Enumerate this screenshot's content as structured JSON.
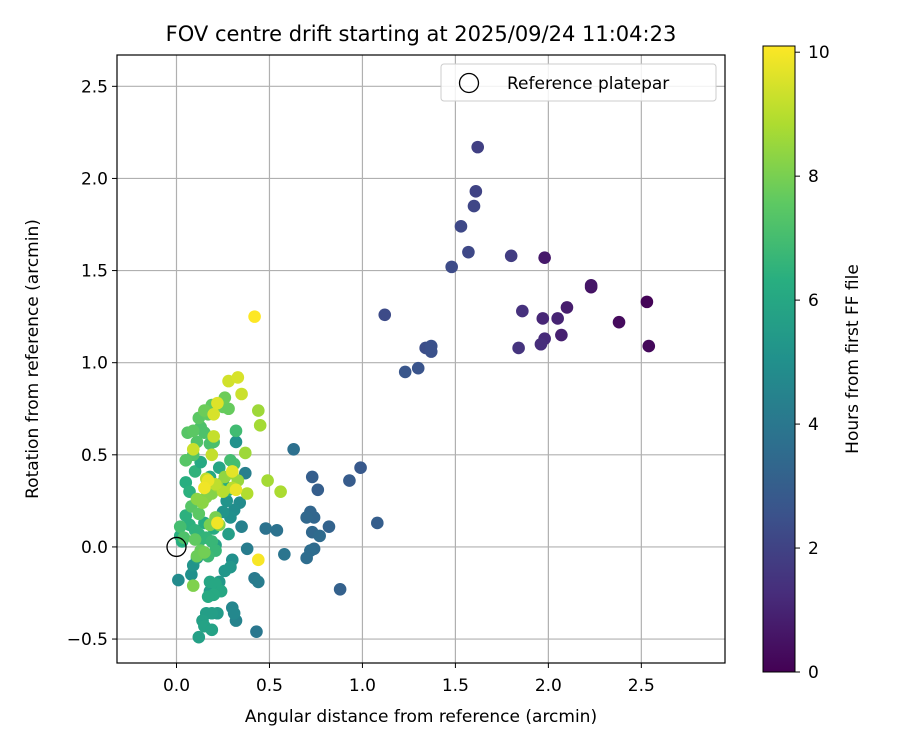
{
  "chart_data": {
    "type": "scatter",
    "title": "FOV centre drift starting at 2025/09/24 11:04:23",
    "xlabel": "Angular distance from reference (arcmin)",
    "ylabel": "Rotation from reference (arcmin)",
    "xlim": [
      -0.32,
      2.95
    ],
    "ylim": [
      -0.63,
      2.67
    ],
    "xticks": [
      0.0,
      0.5,
      1.0,
      1.5,
      2.0,
      2.5
    ],
    "xtick_labels": [
      "0.0",
      "0.5",
      "1.0",
      "1.5",
      "2.0",
      "2.5"
    ],
    "yticks": [
      -0.5,
      0.0,
      0.5,
      1.0,
      1.5,
      2.0,
      2.5
    ],
    "ytick_labels": [
      "−0.5",
      "0.0",
      "0.5",
      "1.0",
      "1.5",
      "2.0",
      "2.5"
    ],
    "grid": true,
    "legend": {
      "location": "top-right",
      "entries": [
        "Reference platepar"
      ]
    },
    "reference_point": {
      "x": 0.0,
      "y": 0.0,
      "label": "Reference platepar"
    },
    "colorbar": {
      "label": "Hours from first FF file",
      "colormap": "viridis",
      "range": [
        0,
        10.1
      ],
      "ticks": [
        0,
        2,
        4,
        6,
        8,
        10
      ],
      "tick_labels": [
        "0",
        "2",
        "4",
        "6",
        "8",
        "10"
      ]
    },
    "points": [
      {
        "x": 2.53,
        "y": 1.33,
        "h": 0.1
      },
      {
        "x": 2.54,
        "y": 1.09,
        "h": 0.2
      },
      {
        "x": 2.38,
        "y": 1.22,
        "h": 0.3
      },
      {
        "x": 2.23,
        "y": 1.41,
        "h": 0.5
      },
      {
        "x": 2.23,
        "y": 1.42,
        "h": 0.6
      },
      {
        "x": 1.98,
        "y": 1.57,
        "h": 0.7
      },
      {
        "x": 2.1,
        "y": 1.3,
        "h": 0.8
      },
      {
        "x": 2.07,
        "y": 1.15,
        "h": 0.9
      },
      {
        "x": 2.05,
        "y": 1.24,
        "h": 1.0
      },
      {
        "x": 1.97,
        "y": 1.24,
        "h": 1.1
      },
      {
        "x": 1.98,
        "y": 1.13,
        "h": 1.2
      },
      {
        "x": 1.96,
        "y": 1.1,
        "h": 1.3
      },
      {
        "x": 1.86,
        "y": 1.28,
        "h": 1.4
      },
      {
        "x": 1.84,
        "y": 1.08,
        "h": 1.5
      },
      {
        "x": 1.8,
        "y": 1.58,
        "h": 1.8
      },
      {
        "x": 1.62,
        "y": 2.17,
        "h": 1.9
      },
      {
        "x": 1.61,
        "y": 1.93,
        "h": 2.0
      },
      {
        "x": 1.6,
        "y": 1.85,
        "h": 2.1
      },
      {
        "x": 1.53,
        "y": 1.74,
        "h": 2.2
      },
      {
        "x": 1.57,
        "y": 1.6,
        "h": 2.2
      },
      {
        "x": 1.48,
        "y": 1.52,
        "h": 2.3
      },
      {
        "x": 1.12,
        "y": 1.26,
        "h": 2.3
      },
      {
        "x": 1.34,
        "y": 1.08,
        "h": 2.4
      },
      {
        "x": 1.37,
        "y": 1.09,
        "h": 2.5
      },
      {
        "x": 1.37,
        "y": 1.06,
        "h": 2.5
      },
      {
        "x": 1.3,
        "y": 0.97,
        "h": 2.6
      },
      {
        "x": 1.23,
        "y": 0.95,
        "h": 2.7
      },
      {
        "x": 0.99,
        "y": 0.43,
        "h": 2.8
      },
      {
        "x": 0.93,
        "y": 0.36,
        "h": 2.9
      },
      {
        "x": 0.73,
        "y": 0.38,
        "h": 3.0
      },
      {
        "x": 0.76,
        "y": 0.31,
        "h": 3.0
      },
      {
        "x": 1.08,
        "y": 0.13,
        "h": 3.0
      },
      {
        "x": 0.88,
        "y": -0.23,
        "h": 3.1
      },
      {
        "x": 0.82,
        "y": 0.11,
        "h": 3.2
      },
      {
        "x": 0.72,
        "y": 0.19,
        "h": 3.3
      },
      {
        "x": 0.74,
        "y": 0.16,
        "h": 3.3
      },
      {
        "x": 0.7,
        "y": 0.16,
        "h": 3.4
      },
      {
        "x": 0.73,
        "y": 0.08,
        "h": 3.4
      },
      {
        "x": 0.77,
        "y": 0.06,
        "h": 3.5
      },
      {
        "x": 0.74,
        "y": -0.01,
        "h": 3.5
      },
      {
        "x": 0.72,
        "y": -0.02,
        "h": 3.6
      },
      {
        "x": 0.7,
        "y": -0.06,
        "h": 3.6
      },
      {
        "x": 0.63,
        "y": 0.53,
        "h": 3.7
      },
      {
        "x": 0.48,
        "y": 0.1,
        "h": 3.8
      },
      {
        "x": 0.54,
        "y": 0.09,
        "h": 3.8
      },
      {
        "x": 0.58,
        "y": -0.04,
        "h": 3.9
      },
      {
        "x": 0.43,
        "y": -0.46,
        "h": 4.0
      },
      {
        "x": 0.42,
        "y": -0.17,
        "h": 4.1
      },
      {
        "x": 0.44,
        "y": -0.19,
        "h": 4.2
      },
      {
        "x": 0.38,
        "y": -0.01,
        "h": 4.2
      },
      {
        "x": 0.37,
        "y": 0.4,
        "h": 4.3
      },
      {
        "x": 0.35,
        "y": 0.11,
        "h": 4.4
      },
      {
        "x": 0.32,
        "y": -0.4,
        "h": 4.5
      },
      {
        "x": 0.3,
        "y": -0.33,
        "h": 4.6
      },
      {
        "x": 0.31,
        "y": -0.36,
        "h": 4.7
      },
      {
        "x": 0.34,
        "y": 0.24,
        "h": 4.8
      },
      {
        "x": 0.31,
        "y": 0.2,
        "h": 4.9
      },
      {
        "x": 0.29,
        "y": 0.16,
        "h": 5.0
      },
      {
        "x": 0.3,
        "y": -0.07,
        "h": 5.0
      },
      {
        "x": 0.32,
        "y": 0.57,
        "h": 5.1
      },
      {
        "x": 0.27,
        "y": 0.25,
        "h": 5.2
      },
      {
        "x": 0.25,
        "y": 0.19,
        "h": 5.2
      },
      {
        "x": 0.29,
        "y": -0.11,
        "h": 5.3
      },
      {
        "x": 0.26,
        "y": -0.13,
        "h": 5.3
      },
      {
        "x": 0.23,
        "y": -0.19,
        "h": 5.4
      },
      {
        "x": 0.2,
        "y": -0.22,
        "h": 5.4
      },
      {
        "x": 0.18,
        "y": -0.24,
        "h": 5.5
      },
      {
        "x": 0.22,
        "y": -0.36,
        "h": 5.5
      },
      {
        "x": 0.19,
        "y": -0.36,
        "h": 5.6
      },
      {
        "x": 0.16,
        "y": -0.36,
        "h": 5.6
      },
      {
        "x": 0.14,
        "y": -0.4,
        "h": 5.7
      },
      {
        "x": 0.12,
        "y": -0.49,
        "h": 5.7
      },
      {
        "x": 0.15,
        "y": -0.43,
        "h": 5.8
      },
      {
        "x": 0.19,
        "y": -0.45,
        "h": 5.8
      },
      {
        "x": 0.01,
        "y": -0.18,
        "h": 4.8
      },
      {
        "x": 0.08,
        "y": -0.15,
        "h": 5.0
      },
      {
        "x": 0.09,
        "y": -0.1,
        "h": 5.2
      },
      {
        "x": 0.11,
        "y": -0.06,
        "h": 5.4
      },
      {
        "x": 0.28,
        "y": 0.07,
        "h": 5.6
      },
      {
        "x": 0.21,
        "y": 0.01,
        "h": 5.7
      },
      {
        "x": 0.18,
        "y": -0.19,
        "h": 5.9
      },
      {
        "x": 0.21,
        "y": -0.2,
        "h": 6.0
      },
      {
        "x": 0.24,
        "y": -0.24,
        "h": 6.0
      },
      {
        "x": 0.2,
        "y": -0.26,
        "h": 6.1
      },
      {
        "x": 0.17,
        "y": -0.27,
        "h": 6.1
      },
      {
        "x": 0.15,
        "y": 0.13,
        "h": 6.2
      },
      {
        "x": 0.2,
        "y": 0.1,
        "h": 6.2
      },
      {
        "x": 0.02,
        "y": 0.06,
        "h": 6.3
      },
      {
        "x": 0.03,
        "y": 0.03,
        "h": 6.3
      },
      {
        "x": 0.05,
        "y": 0.17,
        "h": 6.4
      },
      {
        "x": 0.07,
        "y": 0.12,
        "h": 6.4
      },
      {
        "x": 0.1,
        "y": 0.09,
        "h": 6.5
      },
      {
        "x": 0.12,
        "y": 0.07,
        "h": 6.5
      },
      {
        "x": 0.13,
        "y": 0.04,
        "h": 6.6
      },
      {
        "x": 0.16,
        "y": 0.05,
        "h": 6.6
      },
      {
        "x": 0.19,
        "y": 0.03,
        "h": 6.7
      },
      {
        "x": 0.21,
        "y": -0.02,
        "h": 6.7
      },
      {
        "x": 0.17,
        "y": -0.05,
        "h": 6.8
      },
      {
        "x": 0.14,
        "y": -0.03,
        "h": 6.8
      },
      {
        "x": 0.05,
        "y": 0.35,
        "h": 6.3
      },
      {
        "x": 0.07,
        "y": 0.3,
        "h": 6.4
      },
      {
        "x": 0.1,
        "y": 0.41,
        "h": 6.5
      },
      {
        "x": 0.13,
        "y": 0.46,
        "h": 6.1
      },
      {
        "x": 0.18,
        "y": 0.38,
        "h": 6.0
      },
      {
        "x": 0.23,
        "y": 0.43,
        "h": 5.9
      },
      {
        "x": 0.25,
        "y": 0.35,
        "h": 6.2
      },
      {
        "x": 0.28,
        "y": 0.31,
        "h": 6.3
      },
      {
        "x": 0.32,
        "y": 0.63,
        "h": 6.9
      },
      {
        "x": 0.29,
        "y": 0.47,
        "h": 7.0
      },
      {
        "x": 0.31,
        "y": 0.45,
        "h": 7.0
      },
      {
        "x": 0.18,
        "y": 0.56,
        "h": 7.1
      },
      {
        "x": 0.2,
        "y": 0.57,
        "h": 7.1
      },
      {
        "x": 0.15,
        "y": 0.62,
        "h": 7.2
      },
      {
        "x": 0.13,
        "y": 0.65,
        "h": 7.2
      },
      {
        "x": 0.11,
        "y": 0.57,
        "h": 7.3
      },
      {
        "x": 0.09,
        "y": 0.5,
        "h": 7.3
      },
      {
        "x": 0.05,
        "y": 0.47,
        "h": 7.4
      },
      {
        "x": 0.06,
        "y": 0.62,
        "h": 7.4
      },
      {
        "x": 0.09,
        "y": 0.63,
        "h": 7.5
      },
      {
        "x": 0.12,
        "y": 0.7,
        "h": 7.5
      },
      {
        "x": 0.17,
        "y": 0.72,
        "h": 7.6
      },
      {
        "x": 0.19,
        "y": 0.77,
        "h": 7.6
      },
      {
        "x": 0.25,
        "y": 0.76,
        "h": 7.7
      },
      {
        "x": 0.28,
        "y": 0.75,
        "h": 7.7
      },
      {
        "x": 0.26,
        "y": 0.81,
        "h": 7.8
      },
      {
        "x": 0.15,
        "y": 0.74,
        "h": 7.8
      },
      {
        "x": 0.02,
        "y": 0.11,
        "h": 7.0
      },
      {
        "x": 0.04,
        "y": 0.05,
        "h": 7.2
      },
      {
        "x": 0.08,
        "y": 0.22,
        "h": 7.4
      },
      {
        "x": 0.12,
        "y": 0.18,
        "h": 7.5
      },
      {
        "x": 0.1,
        "y": 0.04,
        "h": 7.6
      },
      {
        "x": 0.13,
        "y": -0.02,
        "h": 7.7
      },
      {
        "x": 0.11,
        "y": -0.05,
        "h": 7.8
      },
      {
        "x": 0.15,
        "y": -0.03,
        "h": 7.9
      },
      {
        "x": 0.18,
        "y": 0.12,
        "h": 8.0
      },
      {
        "x": 0.21,
        "y": 0.16,
        "h": 8.0
      },
      {
        "x": 0.23,
        "y": 0.12,
        "h": 8.1
      },
      {
        "x": 0.09,
        "y": -0.21,
        "h": 8.1
      },
      {
        "x": 0.16,
        "y": 0.27,
        "h": 8.2
      },
      {
        "x": 0.19,
        "y": 0.29,
        "h": 8.2
      },
      {
        "x": 0.14,
        "y": 0.24,
        "h": 8.3
      },
      {
        "x": 0.11,
        "y": 0.26,
        "h": 8.3
      },
      {
        "x": 0.22,
        "y": 0.33,
        "h": 8.4
      },
      {
        "x": 0.26,
        "y": 0.38,
        "h": 8.4
      },
      {
        "x": 0.3,
        "y": 0.4,
        "h": 8.5
      },
      {
        "x": 0.33,
        "y": 0.36,
        "h": 8.5
      },
      {
        "x": 0.37,
        "y": 0.51,
        "h": 8.6
      },
      {
        "x": 0.44,
        "y": 0.74,
        "h": 8.6
      },
      {
        "x": 0.45,
        "y": 0.66,
        "h": 8.7
      },
      {
        "x": 0.49,
        "y": 0.36,
        "h": 8.7
      },
      {
        "x": 0.56,
        "y": 0.3,
        "h": 8.8
      },
      {
        "x": 0.38,
        "y": 0.29,
        "h": 8.9
      },
      {
        "x": 0.3,
        "y": 0.32,
        "h": 9.0
      },
      {
        "x": 0.25,
        "y": 0.3,
        "h": 9.0
      },
      {
        "x": 0.21,
        "y": 0.34,
        "h": 9.1
      },
      {
        "x": 0.16,
        "y": 0.37,
        "h": 9.1
      },
      {
        "x": 0.2,
        "y": 0.6,
        "h": 9.2
      },
      {
        "x": 0.19,
        "y": 0.5,
        "h": 9.2
      },
      {
        "x": 0.09,
        "y": 0.53,
        "h": 9.3
      },
      {
        "x": 0.35,
        "y": 0.83,
        "h": 9.3
      },
      {
        "x": 0.28,
        "y": 0.9,
        "h": 9.4
      },
      {
        "x": 0.33,
        "y": 0.92,
        "h": 9.5
      },
      {
        "x": 0.2,
        "y": 0.72,
        "h": 9.5
      },
      {
        "x": 0.22,
        "y": 0.78,
        "h": 9.6
      },
      {
        "x": 0.3,
        "y": 0.41,
        "h": 9.7
      },
      {
        "x": 0.32,
        "y": 0.31,
        "h": 9.8
      },
      {
        "x": 0.17,
        "y": 0.36,
        "h": 9.8
      },
      {
        "x": 0.15,
        "y": 0.32,
        "h": 9.9
      },
      {
        "x": 0.22,
        "y": 0.13,
        "h": 9.9
      },
      {
        "x": 0.44,
        "y": -0.07,
        "h": 10.0
      },
      {
        "x": 0.42,
        "y": 1.25,
        "h": 10.1
      }
    ]
  }
}
